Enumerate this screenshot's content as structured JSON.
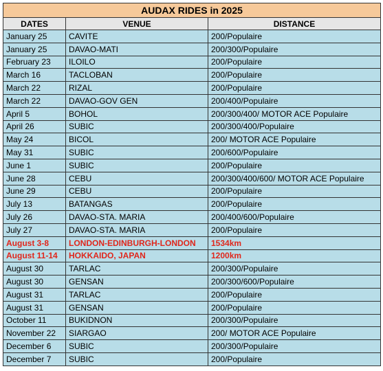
{
  "table": {
    "title": "AUDAX RIDES in 2025",
    "columns": [
      "DATES",
      "VENUE",
      "DISTANCE"
    ],
    "rows": [
      {
        "date": "January 25",
        "venue": "CAVITE",
        "distance": "200/Populaire"
      },
      {
        "date": "January 25",
        "venue": "DAVAO-MATI",
        "distance": "200/300/Populaire"
      },
      {
        "date": "February 23",
        "venue": "ILOILO",
        "distance": "200/Populaire"
      },
      {
        "date": "March 16",
        "venue": "TACLOBAN",
        "distance": "200/Populaire"
      },
      {
        "date": "March 22",
        "venue": "RIZAL",
        "distance": "200/Populaire"
      },
      {
        "date": "March 22",
        "venue": "DAVAO-GOV GEN",
        "distance": "200/400/Populaire"
      },
      {
        "date": "April 5",
        "venue": "BOHOL",
        "distance": "200/300/400/ MOTOR ACE Populaire"
      },
      {
        "date": "April 26",
        "venue": "SUBIC",
        "distance": "200/300/400/Populaire"
      },
      {
        "date": "May 24",
        "venue": "BICOL",
        "distance": "200/ MOTOR ACE Populaire"
      },
      {
        "date": "May 31",
        "venue": "SUBIC",
        "distance": "200/600/Populaire"
      },
      {
        "date": "June 1",
        "venue": "SUBIC",
        "distance": "200/Populaire"
      },
      {
        "date": "June 28",
        "venue": "CEBU",
        "distance": "200/300/400/600/ MOTOR ACE Populaire"
      },
      {
        "date": "June 29",
        "venue": "CEBU",
        "distance": "200/Populaire"
      },
      {
        "date": "July 13",
        "venue": "BATANGAS",
        "distance": "200/Populaire"
      },
      {
        "date": "July 26",
        "venue": "DAVAO-STA. MARIA",
        "distance": "200/400/600/Populaire"
      },
      {
        "date": "July 27",
        "venue": "DAVAO-STA. MARIA",
        "distance": "200/Populaire"
      },
      {
        "date": "August 3-8",
        "venue": "LONDON-EDINBURGH-LONDON",
        "distance": "1534km",
        "highlight": true
      },
      {
        "date": "August 11-14",
        "venue": "HOKKAIDO, JAPAN",
        "distance": "1200km",
        "highlight": true
      },
      {
        "date": "August 30",
        "venue": "TARLAC",
        "distance": "200/300/Populaire"
      },
      {
        "date": "August 30",
        "venue": "GENSAN",
        "distance": "200/300/600/Populaire"
      },
      {
        "date": "August 31",
        "venue": "TARLAC",
        "distance": "200/Populaire"
      },
      {
        "date": "August 31",
        "venue": "GENSAN",
        "distance": "200/Populaire"
      },
      {
        "date": "October 11",
        "venue": "BUKIDNON",
        "distance": "200/300/Populaire"
      },
      {
        "date": "November 22",
        "venue": "SIARGAO",
        "distance": "200/ MOTOR ACE Populaire"
      },
      {
        "date": "December 6",
        "venue": "SUBIC",
        "distance": "200/300/Populaire"
      },
      {
        "date": "December 7",
        "venue": "SUBIC",
        "distance": "200/Populaire"
      }
    ]
  }
}
